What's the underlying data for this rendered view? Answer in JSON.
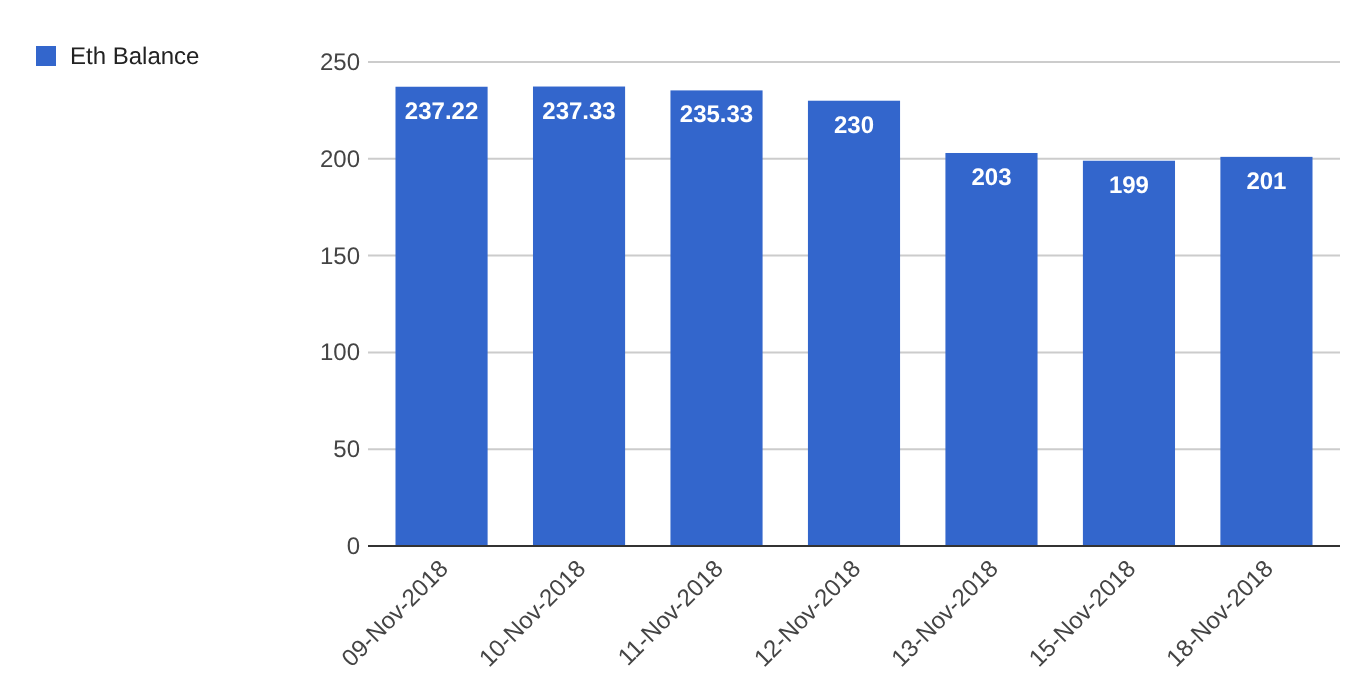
{
  "chart_data": {
    "type": "bar",
    "categories": [
      "09-Nov-2018",
      "10-Nov-2018",
      "11-Nov-2018",
      "12-Nov-2018",
      "13-Nov-2018",
      "15-Nov-2018",
      "18-Nov-2018"
    ],
    "series": [
      {
        "name": "Eth Balance",
        "color": "#3366cc",
        "values": [
          237.22,
          237.33,
          235.33,
          230,
          203,
          199,
          201
        ]
      }
    ],
    "ylim": [
      0,
      250
    ],
    "yticks": [
      0,
      50,
      100,
      150,
      200,
      250
    ],
    "grid": "y",
    "legend": "left",
    "data_labels": true
  }
}
